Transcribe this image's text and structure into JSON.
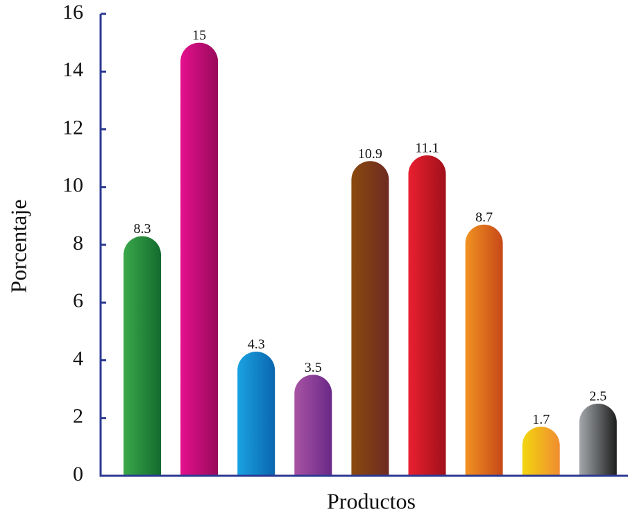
{
  "chart_data": {
    "type": "bar",
    "xlabel": "Productos",
    "ylabel": "Porcentaje",
    "categories": [
      null,
      null,
      null,
      null,
      null,
      null,
      null,
      null,
      null
    ],
    "values": [
      8.3,
      15,
      4.3,
      3.5,
      10.9,
      11.1,
      8.7,
      1.7,
      2.5
    ],
    "colors": [
      [
        "#3aa84a",
        "#136b2e"
      ],
      [
        "#e5108e",
        "#980a5a"
      ],
      [
        "#1aa2e2",
        "#0a66ae"
      ],
      [
        "#a854a4",
        "#6a2888"
      ],
      [
        "#8a4a0e",
        "#6e2a22"
      ],
      [
        "#ea2030",
        "#a0101a"
      ],
      [
        "#f29222",
        "#c64818"
      ],
      [
        "#f2d610",
        "#f08c30"
      ],
      [
        "#a4a8ac",
        "#1e1e1e"
      ]
    ],
    "axis_color": "#2b3990",
    "ylim": [
      0,
      16
    ],
    "yticks": [
      0,
      2,
      4,
      6,
      8,
      10,
      12,
      14,
      16
    ],
    "grid": false
  }
}
